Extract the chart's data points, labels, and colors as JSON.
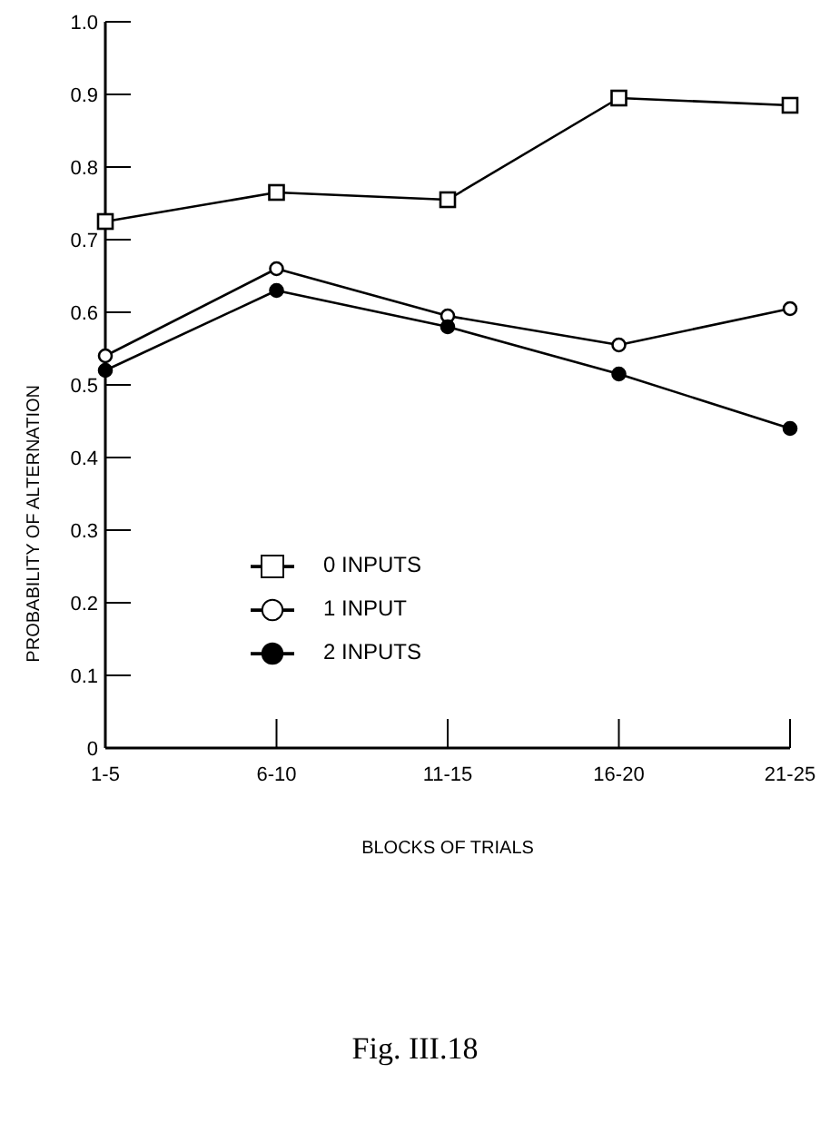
{
  "chart_data": {
    "type": "line",
    "xlabel": "BLOCKS OF TRIALS",
    "ylabel": "PROBABILITY  OF  ALTERNATION",
    "annotations": [
      "Fig. III.18"
    ],
    "categories": [
      "1-5",
      "6-10",
      "11-15",
      "16-20",
      "21-25"
    ],
    "ylim": [
      0,
      1
    ],
    "yticks": [
      0,
      0.1,
      0.2,
      0.3,
      0.4,
      0.5,
      0.6,
      0.7,
      0.8,
      0.9,
      {
        "value": 1,
        "label": "1.0"
      }
    ],
    "grid": false,
    "legend": "bottom",
    "line_style": "solid",
    "series": [
      {
        "name": "0  INPUTS",
        "color": "#000000",
        "colors": [
          "#ffffff",
          "#ffffff",
          "#ffffff",
          "#ffffff",
          "#ffffff"
        ],
        "marker": "square",
        "values": [
          0.725,
          0.765,
          0.755,
          0.895,
          0.885
        ]
      },
      {
        "name": "1  INPUT",
        "color": "#000000",
        "colors": [
          "#ffffff",
          "#ffffff",
          "#ffffff",
          "#ffffff",
          "#ffffff"
        ],
        "marker": "circle",
        "values": [
          0.54,
          0.66,
          0.595,
          0.555,
          0.605
        ]
      },
      {
        "name": "2  INPUTS",
        "color": "#000000",
        "marker": "circle",
        "values": [
          0.52,
          0.63,
          0.58,
          0.515,
          0.44
        ]
      }
    ]
  }
}
